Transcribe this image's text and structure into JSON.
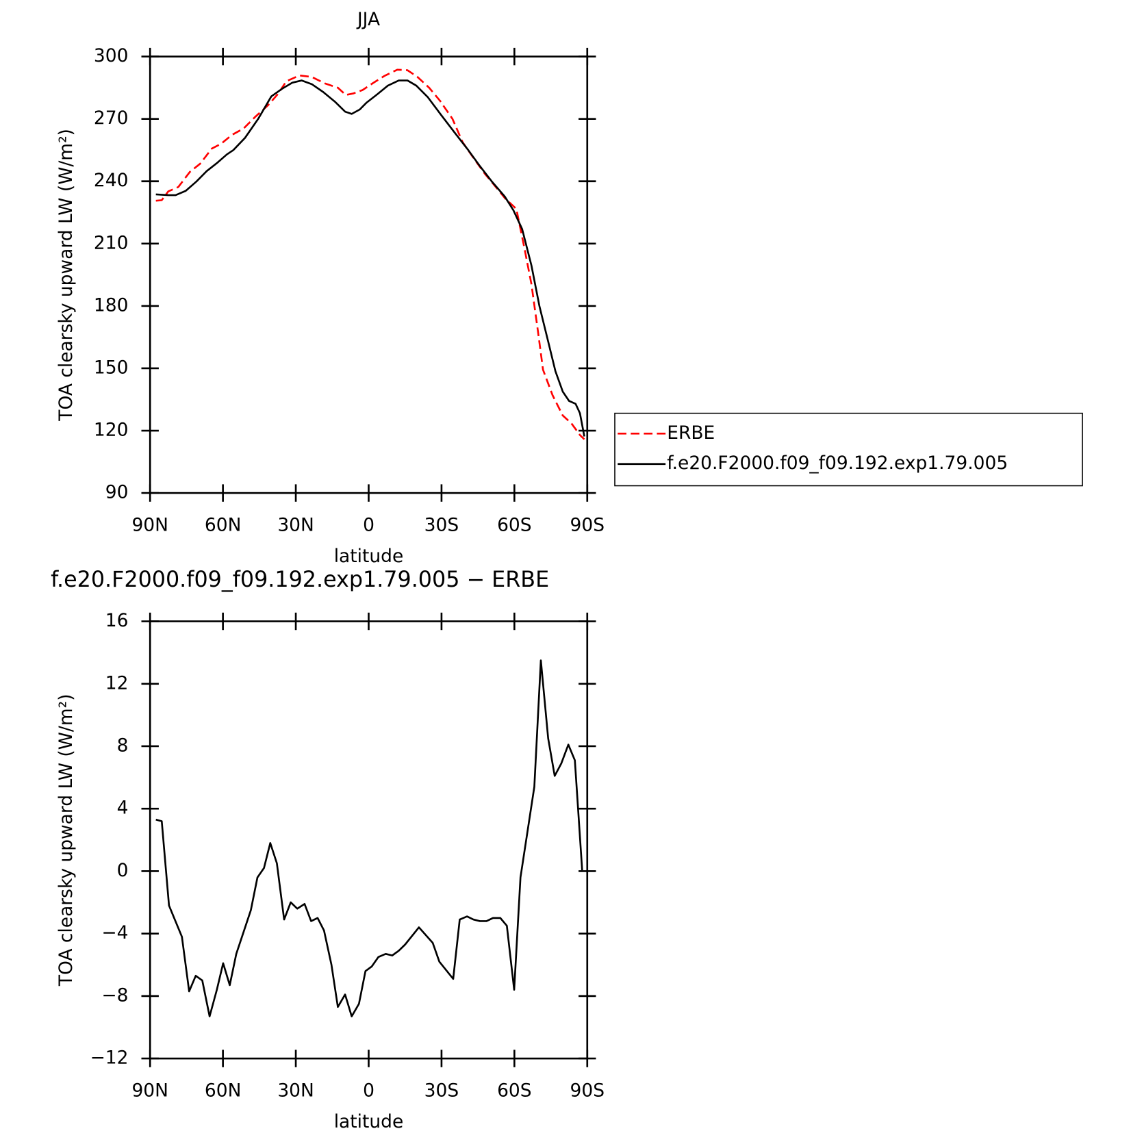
{
  "chart_data": [
    {
      "type": "line",
      "title": "JJA",
      "xlabel": "latitude",
      "ylabel": "TOA clearsky upward LW (W/m²)",
      "xlim": [
        90,
        -90
      ],
      "xticks": [
        {
          "value": 90,
          "label": "90N"
        },
        {
          "value": 60,
          "label": "60N"
        },
        {
          "value": 30,
          "label": "30N"
        },
        0,
        {
          "value": -30,
          "label": "30S"
        },
        {
          "value": -60,
          "label": "60S"
        },
        {
          "value": -90,
          "label": "90S"
        }
      ],
      "ylim": [
        90,
        300
      ],
      "yticks": [
        90,
        120,
        150,
        180,
        210,
        240,
        270,
        300
      ],
      "legend": "outside-right",
      "series": [
        {
          "name": "ERBE",
          "color": "#ff0000",
          "linestyle": "dashed",
          "x": [
            87.6,
            85.2,
            82.5,
            78.4,
            73.6,
            69.4,
            64.6,
            60.7,
            56.3,
            51.5,
            46.7,
            41.4,
            37.2,
            33.9,
            28.5,
            23.4,
            18.1,
            12.7,
            9.4,
            6.4,
            2.5,
            -1.6,
            -6.4,
            -11.8,
            -16.0,
            -20.1,
            -24.9,
            -29.4,
            -34.5,
            -38.7,
            -43.4,
            -47.9,
            -52.4,
            -56.3,
            -60.8,
            -64.0,
            -67.0,
            -69.7,
            -71.8,
            -75.7,
            -79.9,
            -83.5,
            -87.0,
            -88.8
          ],
          "values": [
            230.6,
            230.9,
            235.1,
            237.2,
            244.5,
            248.4,
            255.7,
            258.1,
            262.3,
            265.4,
            271.0,
            276.6,
            282.2,
            288.1,
            290.9,
            290.2,
            287.1,
            285.0,
            281.5,
            282.2,
            283.9,
            287.1,
            290.6,
            293.7,
            293.4,
            290.2,
            285.0,
            278.7,
            270.0,
            258.8,
            250.8,
            243.5,
            237.2,
            231.6,
            226.7,
            208.6,
            190.5,
            167.8,
            149.3,
            137.1,
            127.3,
            123.5,
            117.9,
            115.8
          ]
        },
        {
          "name": "f.e20.F2000.f09_f09.192.exp1.79.005",
          "color": "#000000",
          "linestyle": "solid",
          "x": [
            87.6,
            82.5,
            79.5,
            75.3,
            70.9,
            66.7,
            62.2,
            58.4,
            55.7,
            50.9,
            45.5,
            40.1,
            35.4,
            31.5,
            27.6,
            23.4,
            18.7,
            13.9,
            9.7,
            7.0,
            3.7,
            1.0,
            -3.5,
            -7.9,
            -12.4,
            -16.0,
            -19.6,
            -24.4,
            -29.7,
            -35.4,
            -40.8,
            -45.8,
            -50.9,
            -56.0,
            -59.6,
            -63.2,
            -67.0,
            -70.3,
            -73.9,
            -76.9,
            -79.9,
            -82.5,
            -85.2,
            -87.0,
            -88.8
          ],
          "values": [
            233.7,
            233.3,
            233.3,
            235.4,
            239.9,
            244.9,
            249.0,
            252.9,
            255.0,
            260.9,
            270.0,
            280.8,
            284.7,
            287.4,
            288.5,
            286.7,
            282.9,
            278.3,
            273.5,
            272.4,
            274.5,
            277.7,
            281.8,
            286.0,
            288.5,
            288.5,
            286.0,
            280.4,
            272.1,
            263.4,
            255.3,
            247.3,
            239.6,
            232.7,
            226.0,
            217.0,
            199.5,
            180.0,
            162.9,
            148.6,
            138.8,
            134.3,
            132.9,
            128.4,
            117.2
          ]
        }
      ]
    },
    {
      "type": "line",
      "title": "f.e20.F2000.f09_f09.192.exp1.79.005 − ERBE",
      "xlabel": "latitude",
      "ylabel": "TOA clearsky upward LW (W/m²)",
      "xlim": [
        90,
        -90
      ],
      "xticks": [
        {
          "value": 90,
          "label": "90N"
        },
        {
          "value": 60,
          "label": "60N"
        },
        {
          "value": 30,
          "label": "30N"
        },
        0,
        {
          "value": -30,
          "label": "30S"
        },
        {
          "value": -60,
          "label": "60S"
        },
        {
          "value": -90,
          "label": "90S"
        }
      ],
      "ylim": [
        -12,
        16
      ],
      "yticks": [
        {
          "value": -12,
          "label": "−12"
        },
        {
          "value": -8,
          "label": "−8"
        },
        {
          "value": -4,
          "label": "−4"
        },
        0,
        4,
        8,
        12,
        16
      ],
      "series": [
        {
          "color": "#000000",
          "linestyle": "solid",
          "x": [
            87.6,
            85.2,
            82.2,
            76.9,
            73.9,
            71.2,
            68.5,
            65.5,
            62.5,
            59.9,
            57.2,
            54.5,
            48.5,
            45.8,
            43.1,
            40.5,
            37.8,
            34.8,
            32.1,
            29.4,
            26.4,
            23.7,
            21.0,
            18.4,
            15.3,
            12.7,
            9.7,
            7.0,
            4.0,
            1.3,
            -1.3,
            -4.0,
            -7.0,
            -9.7,
            -12.4,
            -15.0,
            -20.7,
            -26.4,
            -29.1,
            -34.8,
            -37.5,
            -40.5,
            -43.1,
            -45.8,
            -48.5,
            -51.2,
            -54.2,
            -56.9,
            -59.9,
            -62.5,
            -68.2,
            -70.9,
            -73.9,
            -76.6,
            -79.3,
            -82.2,
            -84.9,
            -87.9
          ],
          "values": [
            3.3,
            3.2,
            -2.2,
            -4.2,
            -7.7,
            -6.7,
            -7.0,
            -9.3,
            -7.6,
            -5.9,
            -7.3,
            -5.3,
            -2.5,
            -0.4,
            0.2,
            1.8,
            0.5,
            -3.1,
            -2.0,
            -2.4,
            -2.1,
            -3.2,
            -3.0,
            -3.8,
            -6.0,
            -8.7,
            -7.9,
            -9.3,
            -8.5,
            -6.4,
            -6.1,
            -5.5,
            -5.3,
            -5.4,
            -5.1,
            -4.7,
            -3.6,
            -4.6,
            -5.8,
            -6.9,
            -3.1,
            -2.9,
            -3.1,
            -3.2,
            -3.2,
            -3.0,
            -3.0,
            -3.5,
            -7.6,
            -0.4,
            5.4,
            13.5,
            8.5,
            6.1,
            6.9,
            8.1,
            7.1,
            0.05
          ]
        }
      ]
    }
  ]
}
